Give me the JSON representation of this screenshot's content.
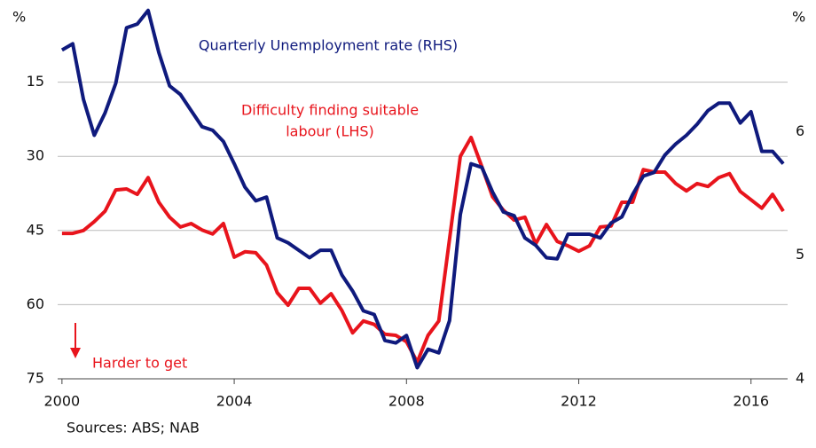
{
  "chart_data": {
    "type": "line",
    "y_unit": "%",
    "y2_unit": "%",
    "x": [
      2000,
      2000.25,
      2000.5,
      2000.75,
      2001,
      2001.25,
      2001.5,
      2001.75,
      2002,
      2002.25,
      2002.5,
      2002.75,
      2003,
      2003.25,
      2003.5,
      2003.75,
      2004,
      2004.25,
      2004.5,
      2004.75,
      2005,
      2005.25,
      2005.5,
      2005.75,
      2006,
      2006.25,
      2006.5,
      2006.75,
      2007,
      2007.25,
      2007.5,
      2007.75,
      2008,
      2008.25,
      2008.5,
      2008.75,
      2009,
      2009.25,
      2009.5,
      2009.75,
      2010,
      2010.25,
      2010.5,
      2010.75,
      2011,
      2011.25,
      2011.5,
      2011.75,
      2012,
      2012.25,
      2012.5,
      2012.75,
      2013,
      2013.25,
      2013.5,
      2013.75,
      2014,
      2014.25,
      2014.5,
      2014.75,
      2015,
      2015.25,
      2015.5,
      2015.75,
      2016,
      2016.25,
      2016.5,
      2016.75
    ],
    "xlim": [
      1999.9,
      2016.85
    ],
    "xticks": [
      2000,
      2004,
      2008,
      2012,
      2016
    ],
    "ylim": [
      75,
      0
    ],
    "yticks": [
      15,
      30,
      45,
      60,
      75
    ],
    "y2lim": [
      4,
      7
    ],
    "y2ticks": [
      4,
      5,
      6
    ],
    "grid": true,
    "series": [
      {
        "name": [
          "Difficulty finding suitable",
          "labour (LHS)"
        ],
        "color": "#e8141c",
        "values": [
          45.6,
          45.6,
          45,
          43.2,
          41.1,
          36.8,
          36.6,
          37.7,
          34.3,
          39.3,
          42.3,
          44.3,
          43.6,
          44.9,
          45.7,
          43.6,
          50.4,
          49.3,
          49.5,
          52,
          57.6,
          60.1,
          56.7,
          56.7,
          59.7,
          57.8,
          61.2,
          65.7,
          63.3,
          64,
          66,
          66.2,
          67.5,
          71.6,
          66.2,
          63.3,
          46.8,
          30,
          26.2,
          32.1,
          38.2,
          40.9,
          42.9,
          42.3,
          47.7,
          43.8,
          47.2,
          48.1,
          49.2,
          48.1,
          44.3,
          44.1,
          39.3,
          39.3,
          32.7,
          33.2,
          33.2,
          35.5,
          37,
          35.5,
          36.1,
          34.3,
          33.5,
          37.1,
          38.8,
          40.5,
          37.7,
          41.1
        ]
      },
      {
        "name": "Quarterly Unemployment rate (RHS)",
        "color": "#0f1a7d",
        "axis": "y2",
        "values": [
          6.66,
          6.71,
          6.26,
          5.97,
          6.15,
          6.39,
          6.84,
          6.87,
          6.98,
          6.64,
          6.37,
          6.3,
          6.17,
          6.04,
          6.01,
          5.92,
          5.74,
          5.55,
          5.44,
          5.47,
          5.14,
          5.1,
          5.04,
          4.98,
          5.04,
          5.04,
          4.84,
          4.71,
          4.55,
          4.52,
          4.31,
          4.29,
          4.35,
          4.09,
          4.24,
          4.21,
          4.47,
          5.33,
          5.74,
          5.71,
          5.51,
          5.35,
          5.32,
          5.14,
          5.08,
          4.98,
          4.97,
          5.17,
          5.17,
          5.17,
          5.14,
          5.26,
          5.31,
          5.49,
          5.64,
          5.67,
          5.81,
          5.9,
          5.97,
          6.06,
          6.17,
          6.23,
          6.23,
          6.07,
          6.16,
          5.84,
          5.84,
          5.74
        ]
      }
    ],
    "annotation": "Harder to get",
    "source": "Sources: ABS; NAB"
  }
}
